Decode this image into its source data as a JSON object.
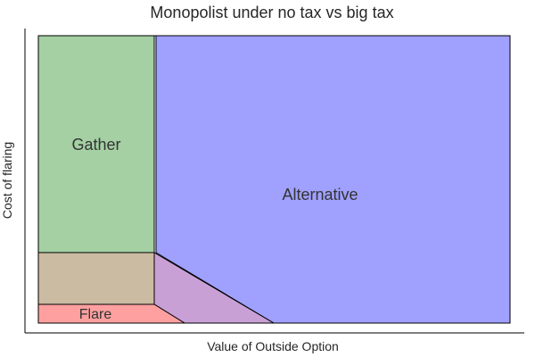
{
  "diagram": {
    "title": "Monopolist under no tax vs big tax",
    "xlabel": "Value of Outside Option",
    "ylabel": "Cost of flaring",
    "regions": [
      {
        "key": "gather",
        "label": "Gather",
        "color": "#a4d0a4"
      },
      {
        "key": "alternative",
        "label": "Alternative",
        "color": "#a0a0ff"
      },
      {
        "key": "flare",
        "label": "Flare",
        "color": "#ffa0a0"
      },
      {
        "key": "mixed_gather_flare",
        "label": "",
        "color": "#cbbba2"
      },
      {
        "key": "mixed_alt_flare",
        "label": "",
        "color": "#c9a0d6"
      }
    ],
    "colors": {
      "axis": "#000000",
      "outline": "#000000",
      "background": "#ffffff"
    }
  }
}
